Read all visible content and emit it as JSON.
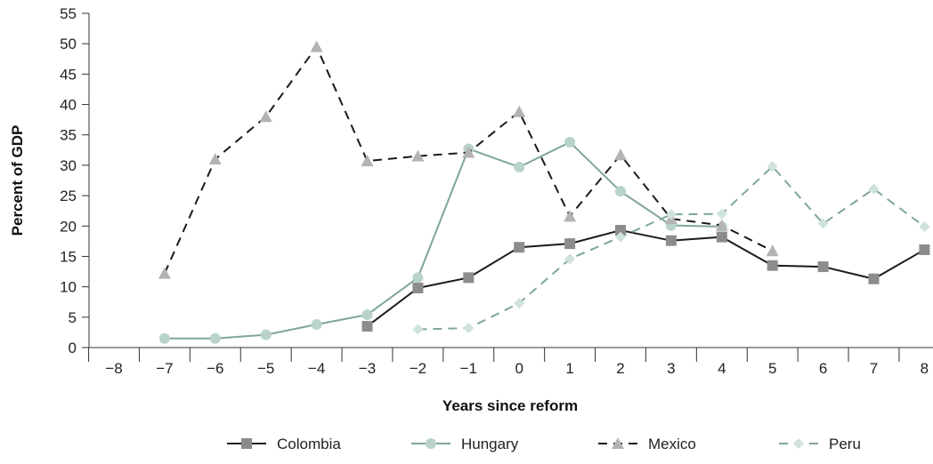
{
  "chart_data": {
    "type": "line",
    "xlabel": "Years since reform",
    "ylabel": "Percent of GDP",
    "x": [
      -8,
      -7,
      -6,
      -5,
      -4,
      -3,
      -2,
      -1,
      0,
      1,
      2,
      3,
      4,
      5,
      6,
      7,
      8
    ],
    "x_tick_labels": [
      "−8",
      "−7",
      "−6",
      "−5",
      "−4",
      "−3",
      "−2",
      "−1",
      "0",
      "1",
      "2",
      "3",
      "4",
      "5",
      "6",
      "7",
      "8"
    ],
    "ylim": [
      0,
      55
    ],
    "y_ticks": [
      0,
      5,
      10,
      15,
      20,
      25,
      30,
      35,
      40,
      45,
      50,
      55
    ],
    "grid": false,
    "legend_position": "bottom",
    "series": [
      {
        "name": "Colombia",
        "values": [
          null,
          null,
          null,
          null,
          null,
          3.5,
          9.8,
          11.5,
          16.5,
          17.1,
          19.3,
          17.6,
          18.2,
          13.5,
          13.3,
          11.3,
          16.1
        ],
        "color": "#1a1a1a",
        "marker": "square",
        "marker_color": "#8c8c8c",
        "dash": "solid"
      },
      {
        "name": "Hungary",
        "values": [
          null,
          1.5,
          1.5,
          2.1,
          3.8,
          5.4,
          11.5,
          32.7,
          29.7,
          33.8,
          25.7,
          20.1,
          19.9,
          null,
          null,
          null,
          null
        ],
        "color": "#7fa59c",
        "marker": "circle",
        "marker_color": "#b9d3cb",
        "dash": "solid"
      },
      {
        "name": "Mexico",
        "values": [
          null,
          12.2,
          31.0,
          38.0,
          49.5,
          30.7,
          31.5,
          32.1,
          38.8,
          21.6,
          31.7,
          21.2,
          20.1,
          15.9,
          null,
          null,
          null
        ],
        "color": "#1a1a1a",
        "marker": "triangle",
        "marker_color": "#b3b3b3",
        "dash": "dashed"
      },
      {
        "name": "Peru",
        "values": [
          null,
          null,
          null,
          null,
          null,
          null,
          3.0,
          3.2,
          7.3,
          14.6,
          18.2,
          21.9,
          22.0,
          29.8,
          20.4,
          26.1,
          19.9
        ],
        "color": "#7fa59c",
        "marker": "diamond",
        "marker_color": "#cfe3dc",
        "dash": "dashed"
      }
    ]
  }
}
